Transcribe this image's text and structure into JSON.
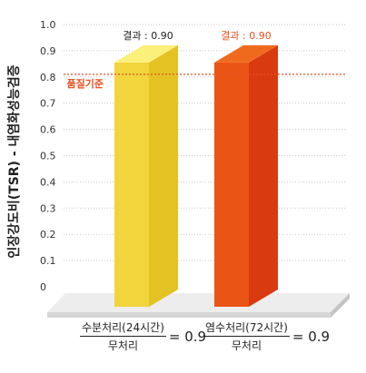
{
  "chart_data": {
    "type": "bar",
    "ylabel": "인장강도비(TSR) - 내염화성능검증",
    "ylim": [
      0,
      1.0
    ],
    "yticks": [
      0,
      0.1,
      0.2,
      0.3,
      0.4,
      0.5,
      0.6,
      0.7,
      0.8,
      0.9,
      1.0
    ],
    "yticks_labels": [
      "0",
      "0.1",
      "0.2",
      "0.3",
      "0.4",
      "0.5",
      "0.6",
      "0.7",
      "0.8",
      "0.9",
      "1.0"
    ],
    "grid": true,
    "threshold": {
      "label": "품질기준",
      "value": 0.81,
      "color": "#e8501e"
    },
    "bars": [
      {
        "value": 0.9,
        "label": "결과 : 0.90",
        "label_color": "#222222",
        "colors": {
          "front": "#f2d43c",
          "side": "#e4c224",
          "top": "#faf07a"
        },
        "formula": {
          "numerator": "수분처리(24시간)",
          "denominator": "무처리",
          "result": "= 0.9"
        }
      },
      {
        "value": 0.9,
        "label": "결과 : 0.90",
        "label_color": "#e8501e",
        "colors": {
          "front": "#ea5515",
          "side": "#d93a10",
          "top": "#f06a1e"
        },
        "formula": {
          "numerator": "염수처리(72시간)",
          "denominator": "무처리",
          "result": "= 0.9"
        }
      }
    ]
  }
}
